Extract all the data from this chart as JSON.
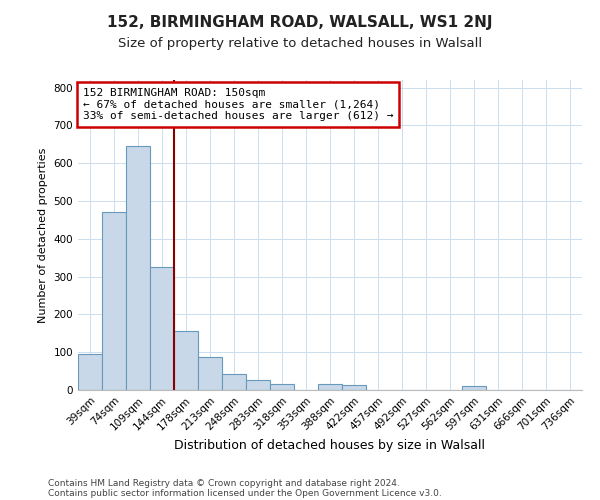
{
  "title": "152, BIRMINGHAM ROAD, WALSALL, WS1 2NJ",
  "subtitle": "Size of property relative to detached houses in Walsall",
  "xlabel": "Distribution of detached houses by size in Walsall",
  "ylabel": "Number of detached properties",
  "bin_labels": [
    "39sqm",
    "74sqm",
    "109sqm",
    "144sqm",
    "178sqm",
    "213sqm",
    "248sqm",
    "283sqm",
    "318sqm",
    "353sqm",
    "388sqm",
    "422sqm",
    "457sqm",
    "492sqm",
    "527sqm",
    "562sqm",
    "597sqm",
    "631sqm",
    "666sqm",
    "701sqm",
    "736sqm"
  ],
  "bar_values": [
    95,
    470,
    645,
    325,
    157,
    88,
    43,
    26,
    16,
    0,
    15,
    14,
    0,
    0,
    0,
    0,
    10,
    0,
    0,
    0,
    0
  ],
  "bar_color": "#c8d8e8",
  "bar_edge_color": "#6699bb",
  "marker_line_color": "#880000",
  "annotation_line1": "152 BIRMINGHAM ROAD: 150sqm",
  "annotation_line2": "← 67% of detached houses are smaller (1,264)",
  "annotation_line3": "33% of semi-detached houses are larger (612) →",
  "annotation_box_color": "#ffffff",
  "annotation_box_edge": "#cc0000",
  "ylim": [
    0,
    820
  ],
  "yticks": [
    0,
    100,
    200,
    300,
    400,
    500,
    600,
    700,
    800
  ],
  "footer1": "Contains HM Land Registry data © Crown copyright and database right 2024.",
  "footer2": "Contains public sector information licensed under the Open Government Licence v3.0.",
  "bg_color": "#ffffff",
  "grid_color": "#ccddee",
  "title_fontsize": 11,
  "subtitle_fontsize": 9.5,
  "xlabel_fontsize": 9,
  "ylabel_fontsize": 8,
  "tick_fontsize": 7.5,
  "footer_fontsize": 6.5
}
